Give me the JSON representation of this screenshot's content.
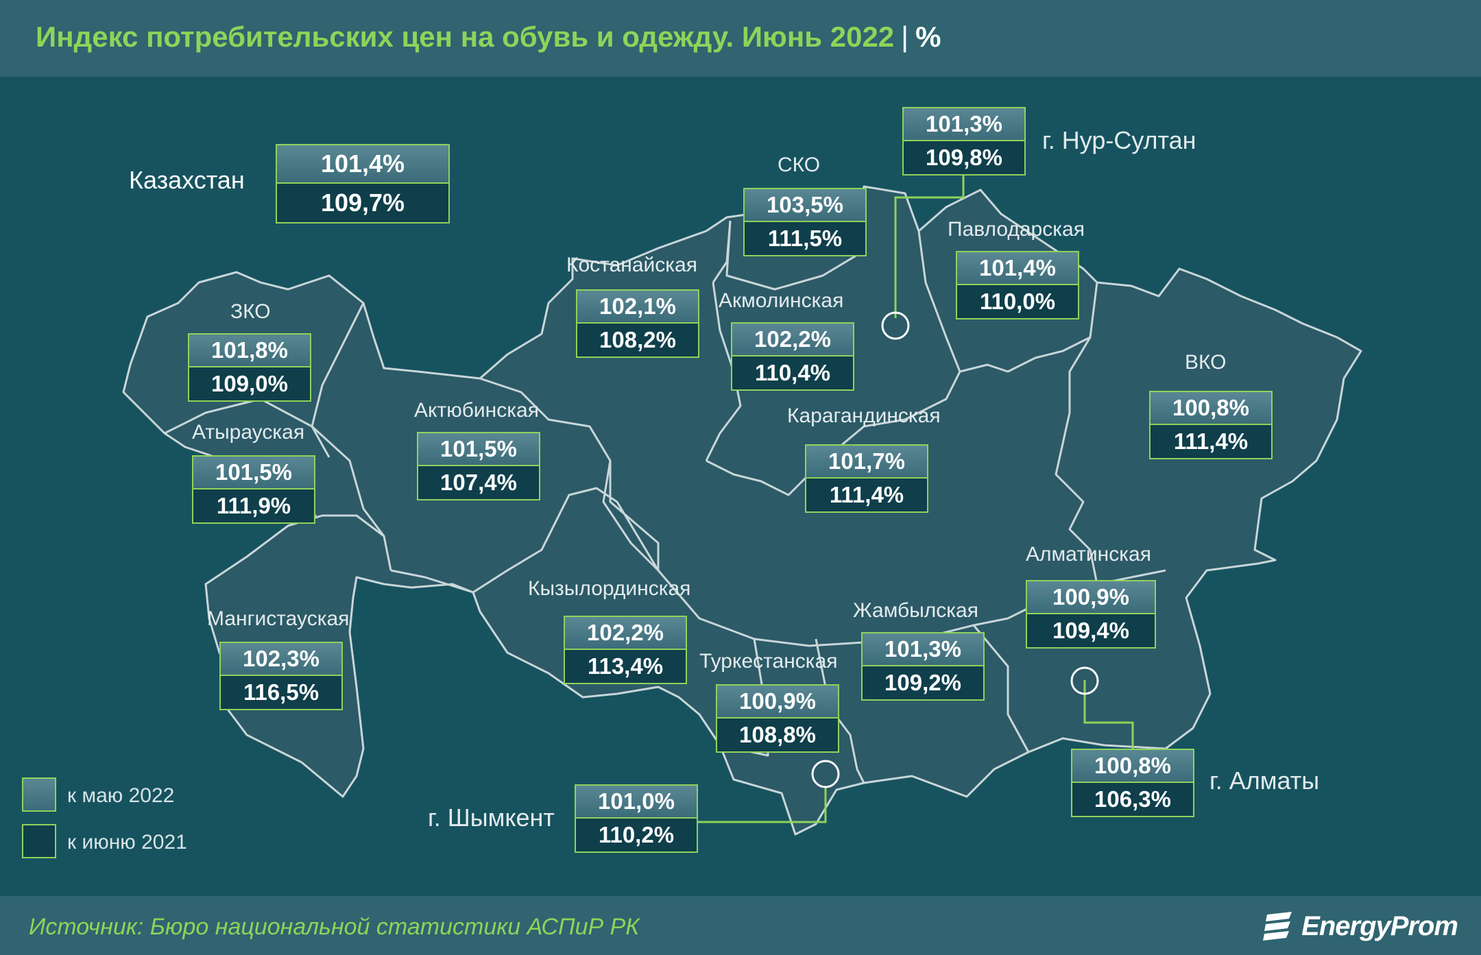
{
  "title": "Индекс потребительских цен на обувь и одежду. Июнь 2022",
  "unit": "%",
  "source": "Источник: Бюро национальной статистики АСПиР РК",
  "brand": "EnergyProm",
  "colors": {
    "title": "#8fd35a",
    "map_bg": "#17535f",
    "region_fill": "#2c5a67",
    "border": "#8fd35a"
  },
  "legend": {
    "may": "к маю 2022",
    "june": "к июню 2021"
  },
  "country": {
    "name": "Казахстан",
    "may": "101,4%",
    "june": "109,7%"
  },
  "regions": {
    "zko": {
      "name": "ЗКО",
      "may": "101,8%",
      "june": "109,0%"
    },
    "atyrau": {
      "name": "Атырауская",
      "may": "101,5%",
      "june": "111,9%"
    },
    "mangistau": {
      "name": "Мангистауская",
      "may": "102,3%",
      "june": "116,5%"
    },
    "aktobe": {
      "name": "Актюбинская",
      "may": "101,5%",
      "june": "107,4%"
    },
    "kostanay": {
      "name": "Костанайская",
      "may": "102,1%",
      "june": "108,2%"
    },
    "sko": {
      "name": "СКО",
      "may": "103,5%",
      "june": "111,5%"
    },
    "akmola": {
      "name": "Акмолинская",
      "may": "102,2%",
      "june": "110,4%"
    },
    "pavlodar": {
      "name": "Павлодарская",
      "may": "101,4%",
      "june": "110,0%"
    },
    "karaganda": {
      "name": "Карагандинская",
      "may": "101,7%",
      "june": "111,4%"
    },
    "vko": {
      "name": "ВКО",
      "may": "100,8%",
      "june": "111,4%"
    },
    "kyzylorda": {
      "name": "Кызылординская",
      "may": "102,2%",
      "june": "113,4%"
    },
    "turkestan": {
      "name": "Туркестанская",
      "may": "100,9%",
      "june": "108,8%"
    },
    "zhambyl": {
      "name": "Жамбылская",
      "may": "101,3%",
      "june": "109,2%"
    },
    "almaty_reg": {
      "name": "Алматинская",
      "may": "100,9%",
      "june": "109,4%"
    }
  },
  "cities": {
    "nursultan": {
      "name": "г. Нур-Султан",
      "may": "101,3%",
      "june": "109,8%"
    },
    "almaty": {
      "name": "г. Алматы",
      "may": "100,8%",
      "june": "106,3%"
    },
    "shymkent": {
      "name": "г. Шымкент",
      "may": "101,0%",
      "june": "110,2%"
    }
  }
}
